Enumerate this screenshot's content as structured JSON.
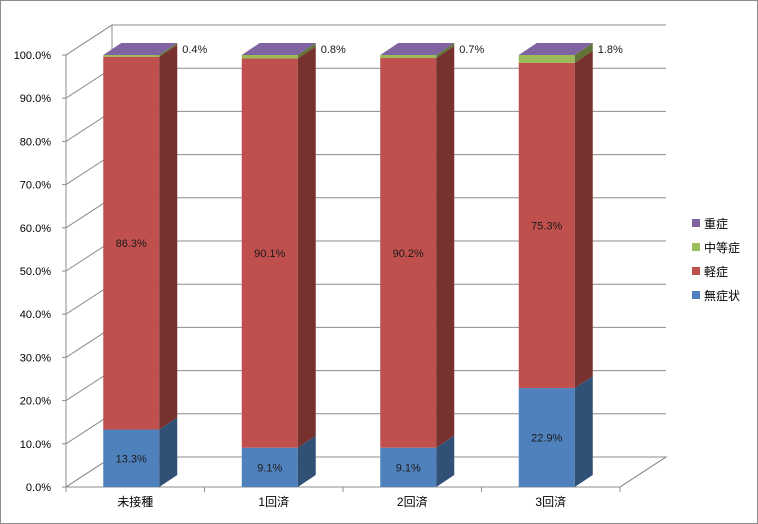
{
  "chart_data": {
    "type": "bar",
    "stacked": true,
    "percent_stacked": true,
    "three_d": true,
    "categories": [
      "未接種",
      "1回済",
      "2回済",
      "3回済"
    ],
    "series": [
      {
        "name": "無症状",
        "values": [
          13.3,
          9.1,
          9.1,
          22.9
        ],
        "color": "#4f81bd",
        "labels": [
          "13.3%",
          "9.1%",
          "9.1%",
          "22.9%"
        ]
      },
      {
        "name": "軽症",
        "values": [
          86.3,
          90.1,
          90.2,
          75.3
        ],
        "color": "#c0504d",
        "labels": [
          "86.3%",
          "90.1%",
          "90.2%",
          "75.3%"
        ]
      },
      {
        "name": "中等症",
        "values": [
          0.4,
          0.8,
          0.7,
          1.8
        ],
        "color": "#9bbb59",
        "labels": [
          "0.4%",
          "0.8%",
          "0.7%",
          "1.8%"
        ]
      },
      {
        "name": "重症",
        "values": [
          0.0,
          0.0,
          0.0,
          0.0
        ],
        "color": "#8064a2",
        "labels": []
      }
    ],
    "legend_order": [
      "重症",
      "中等症",
      "軽症",
      "無症状"
    ],
    "yticks": [
      "0.0%",
      "10.0%",
      "20.0%",
      "30.0%",
      "40.0%",
      "50.0%",
      "60.0%",
      "70.0%",
      "80.0%",
      "90.0%",
      "100.0%"
    ],
    "ylim": [
      0,
      100
    ],
    "grid": true,
    "legend_position": "right",
    "title": "",
    "xlabel": "",
    "ylabel": ""
  }
}
